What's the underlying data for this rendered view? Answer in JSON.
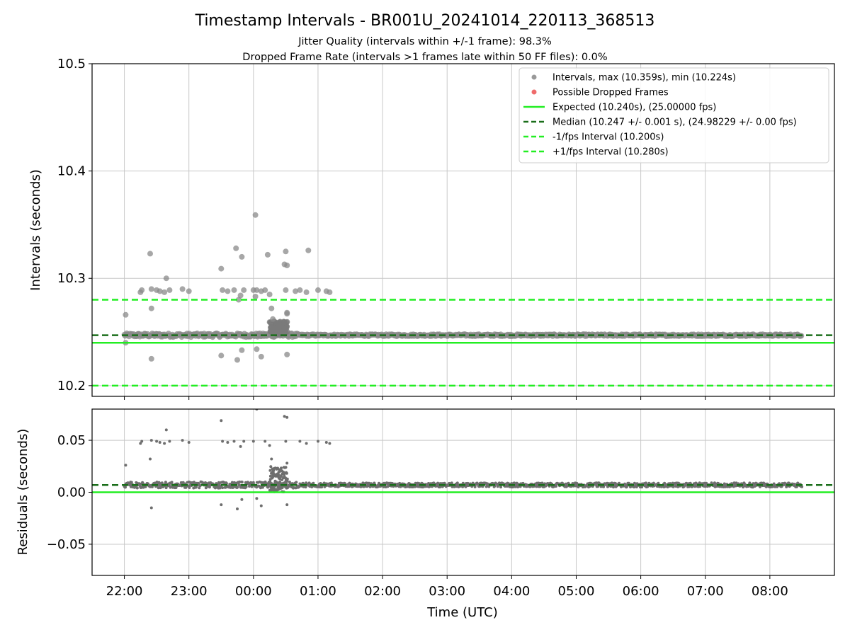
{
  "chart_data": [
    {
      "type": "scatter",
      "title": "Timestamp Intervals - BR001U_20241014_220113_368513",
      "subtitle_lines": [
        "Jitter Quality (intervals within +/-1 frame): 98.3%",
        "Dropped Frame Rate (intervals >1 frames late within 50 FF files): 0.0%"
      ],
      "xlabel": "",
      "ylabel": "Intervals (seconds)",
      "x_domain_hours": [
        21.5,
        33.0
      ],
      "ylim": [
        10.19,
        10.5
      ],
      "yticks": [
        10.2,
        10.3,
        10.4,
        10.5
      ],
      "ytick_labels": [
        "10.2",
        "10.3",
        "10.4",
        "10.5"
      ],
      "grid": true,
      "legend_position": "top-right",
      "legend": [
        {
          "label": "Intervals, max (10.359s), min (10.224s)",
          "kind": "dot",
          "color": "#999999"
        },
        {
          "label": "Possible Dropped Frames",
          "kind": "dot",
          "color": "#ef6b6b"
        },
        {
          "label": "Expected (10.240s), (25.00000 fps)",
          "kind": "solid",
          "color": "#22ee22"
        },
        {
          "label": "Median (10.247 +/- 0.001 s), (24.98229 +/- 0.00 fps)",
          "kind": "dashed",
          "color": "#1a6e1a"
        },
        {
          "label": "-1/fps Interval (10.200s)",
          "kind": "dashed",
          "color": "#22ee22"
        },
        {
          "label": "+1/fps Interval (10.280s)",
          "kind": "dashed",
          "color": "#22ee22"
        }
      ],
      "reference_lines": {
        "expected": 10.24,
        "median": 10.247,
        "minus_one_fps": 10.2,
        "plus_one_fps": 10.28
      },
      "series": [
        {
          "name": "Intervals, max (10.359s), min (10.224s)",
          "baseline_band": {
            "x_start_hours": 22.0,
            "x_end_hours": 32.5,
            "y": 10.247
          },
          "outliers": [
            {
              "x": 22.02,
              "y": 10.266
            },
            {
              "x": 22.02,
              "y": 10.24
            },
            {
              "x": 22.25,
              "y": 10.287
            },
            {
              "x": 22.27,
              "y": 10.289
            },
            {
              "x": 22.4,
              "y": 10.323
            },
            {
              "x": 22.42,
              "y": 10.272
            },
            {
              "x": 22.42,
              "y": 10.225
            },
            {
              "x": 22.42,
              "y": 10.29
            },
            {
              "x": 22.5,
              "y": 10.289
            },
            {
              "x": 22.55,
              "y": 10.288
            },
            {
              "x": 22.62,
              "y": 10.287
            },
            {
              "x": 22.65,
              "y": 10.3
            },
            {
              "x": 22.7,
              "y": 10.289
            },
            {
              "x": 22.9,
              "y": 10.29
            },
            {
              "x": 23.0,
              "y": 10.288
            },
            {
              "x": 23.5,
              "y": 10.309
            },
            {
              "x": 23.5,
              "y": 10.228
            },
            {
              "x": 23.52,
              "y": 10.289
            },
            {
              "x": 23.6,
              "y": 10.288
            },
            {
              "x": 23.7,
              "y": 10.289
            },
            {
              "x": 23.73,
              "y": 10.328
            },
            {
              "x": 23.75,
              "y": 10.224
            },
            {
              "x": 23.77,
              "y": 10.28
            },
            {
              "x": 23.8,
              "y": 10.284
            },
            {
              "x": 23.82,
              "y": 10.32
            },
            {
              "x": 23.82,
              "y": 10.233
            },
            {
              "x": 23.85,
              "y": 10.289
            },
            {
              "x": 24.0,
              "y": 10.289
            },
            {
              "x": 24.03,
              "y": 10.359
            },
            {
              "x": 24.03,
              "y": 10.283
            },
            {
              "x": 24.05,
              "y": 10.289
            },
            {
              "x": 24.05,
              "y": 10.234
            },
            {
              "x": 24.12,
              "y": 10.288
            },
            {
              "x": 24.12,
              "y": 10.227
            },
            {
              "x": 24.18,
              "y": 10.289
            },
            {
              "x": 24.22,
              "y": 10.322
            },
            {
              "x": 24.25,
              "y": 10.285
            },
            {
              "x": 24.28,
              "y": 10.272
            },
            {
              "x": 24.3,
              "y": 10.262
            },
            {
              "x": 24.48,
              "y": 10.313
            },
            {
              "x": 24.5,
              "y": 10.325
            },
            {
              "x": 24.52,
              "y": 10.312
            },
            {
              "x": 24.52,
              "y": 10.229
            },
            {
              "x": 24.5,
              "y": 10.289
            },
            {
              "x": 24.52,
              "y": 10.268
            },
            {
              "x": 24.52,
              "y": 10.267
            },
            {
              "x": 24.65,
              "y": 10.288
            },
            {
              "x": 24.72,
              "y": 10.289
            },
            {
              "x": 24.82,
              "y": 10.287
            },
            {
              "x": 24.85,
              "y": 10.326
            },
            {
              "x": 25.0,
              "y": 10.289
            },
            {
              "x": 25.13,
              "y": 10.288
            },
            {
              "x": 25.18,
              "y": 10.287
            }
          ]
        },
        {
          "name": "Possible Dropped Frames",
          "points": []
        }
      ]
    },
    {
      "type": "scatter",
      "title": "",
      "xlabel": "Time (UTC)",
      "ylabel": "Residuals (seconds)",
      "x_domain_hours": [
        21.5,
        33.0
      ],
      "xticks_hours": [
        22,
        23,
        24,
        25,
        26,
        27,
        28,
        29,
        30,
        31,
        32
      ],
      "xtick_labels": [
        "22:00",
        "23:00",
        "00:00",
        "01:00",
        "02:00",
        "03:00",
        "04:00",
        "05:00",
        "06:00",
        "07:00",
        "08:00"
      ],
      "ylim": [
        -0.08,
        0.08
      ],
      "yticks": [
        -0.05,
        0.0,
        0.05
      ],
      "ytick_labels": [
        "−0.05",
        "0.00",
        "0.05"
      ],
      "grid": true,
      "reference_lines": {
        "zero": 0.0,
        "median": 0.007
      },
      "series": [
        {
          "name": "Residuals",
          "baseline_band": {
            "x_start_hours": 22.0,
            "x_end_hours": 32.5,
            "y": 0.007
          },
          "outliers": [
            {
              "x": 22.02,
              "y": 0.026
            },
            {
              "x": 22.25,
              "y": 0.047
            },
            {
              "x": 22.27,
              "y": 0.049
            },
            {
              "x": 22.4,
              "y": 0.032
            },
            {
              "x": 22.42,
              "y": -0.015
            },
            {
              "x": 22.42,
              "y": 0.05
            },
            {
              "x": 22.5,
              "y": 0.049
            },
            {
              "x": 22.55,
              "y": 0.048
            },
            {
              "x": 22.62,
              "y": 0.047
            },
            {
              "x": 22.65,
              "y": 0.06
            },
            {
              "x": 22.7,
              "y": 0.049
            },
            {
              "x": 22.9,
              "y": 0.05
            },
            {
              "x": 23.0,
              "y": 0.048
            },
            {
              "x": 23.5,
              "y": 0.069
            },
            {
              "x": 23.5,
              "y": -0.012
            },
            {
              "x": 23.52,
              "y": 0.049
            },
            {
              "x": 23.6,
              "y": 0.048
            },
            {
              "x": 23.7,
              "y": 0.049
            },
            {
              "x": 23.75,
              "y": -0.016
            },
            {
              "x": 23.8,
              "y": 0.044
            },
            {
              "x": 23.82,
              "y": -0.007
            },
            {
              "x": 23.85,
              "y": 0.049
            },
            {
              "x": 24.0,
              "y": 0.049
            },
            {
              "x": 24.05,
              "y": 0.08
            },
            {
              "x": 24.05,
              "y": -0.006
            },
            {
              "x": 24.12,
              "y": -0.013
            },
            {
              "x": 24.18,
              "y": 0.049
            },
            {
              "x": 24.25,
              "y": 0.045
            },
            {
              "x": 24.28,
              "y": 0.032
            },
            {
              "x": 24.3,
              "y": 0.022
            },
            {
              "x": 24.48,
              "y": 0.073
            },
            {
              "x": 24.52,
              "y": 0.072
            },
            {
              "x": 24.5,
              "y": 0.049
            },
            {
              "x": 24.52,
              "y": -0.012
            },
            {
              "x": 24.52,
              "y": 0.028
            },
            {
              "x": 24.72,
              "y": 0.049
            },
            {
              "x": 24.82,
              "y": 0.047
            },
            {
              "x": 25.0,
              "y": 0.049
            },
            {
              "x": 25.13,
              "y": 0.048
            },
            {
              "x": 25.18,
              "y": 0.047
            }
          ]
        }
      ]
    }
  ]
}
